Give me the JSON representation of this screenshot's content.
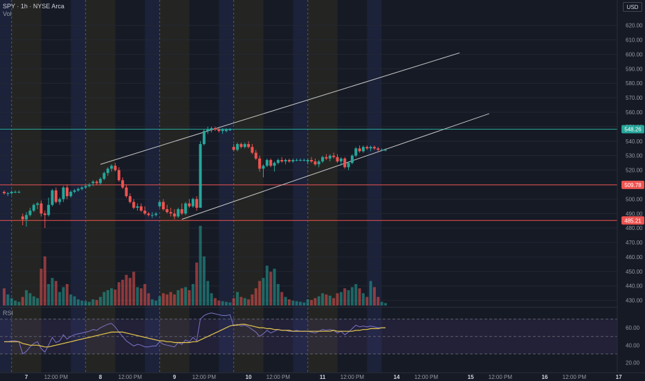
{
  "header": {
    "symbol_line": "SPY · 1h · NYSE Arca",
    "vol_label": "Vol",
    "rsi_label": "RSI",
    "currency": "USD"
  },
  "colors": {
    "up": "#26a69a",
    "down": "#ef5350",
    "background": "#161a25",
    "premarket": "#2a2a22",
    "afterhours": "#1e2540",
    "rsi_line": "#7e73c8",
    "rsi_ma": "#e6c74c",
    "channel": "#c8c8c8",
    "level_green": "#26a69a",
    "level_red": "#ef5350"
  },
  "chart_data": {
    "type": "candlestick",
    "symbol": "SPY",
    "interval": "1h",
    "exchange": "NYSE Arca",
    "currency": "USD",
    "price_axis": {
      "ticks": [
        620,
        610,
        600,
        590,
        580,
        570,
        560,
        550,
        540,
        530,
        520,
        510,
        500,
        490,
        480,
        470,
        460,
        450,
        440,
        430
      ],
      "tick_labels": [
        "620.00",
        "610.00",
        "600.00",
        "590.00",
        "580.00",
        "570.00",
        "560.00",
        "550.00",
        "540.00",
        "530.00",
        "520.00",
        "510.00",
        "500.00",
        "490.00",
        "480.00",
        "470.00",
        "460.00",
        "450.00",
        "440.00",
        "430.00"
      ],
      "range": [
        426,
        627
      ]
    },
    "rsi_axis": {
      "ticks": [
        60,
        40,
        20
      ],
      "tick_labels": [
        "60.00",
        "40.00",
        "20.00"
      ],
      "range": [
        10,
        80
      ],
      "band": [
        30,
        70
      ]
    },
    "time_axis": {
      "labels": [
        "7",
        "12:00 PM",
        "8",
        "12:00 PM",
        "9",
        "12:00 PM",
        "10",
        "12:00 PM",
        "11",
        "12:00 PM",
        "14",
        "12:00 PM",
        "15",
        "12:00 PM",
        "16",
        "12:00 PM",
        "17"
      ],
      "label_slots": [
        6,
        14,
        26,
        34,
        46,
        54,
        66,
        74,
        86,
        94,
        106,
        114,
        126,
        134,
        146,
        154,
        166
      ]
    },
    "sessions": [
      {
        "type": "afterhours",
        "slots": [
          -2,
          2
        ]
      },
      {
        "type": "premarket",
        "slots": [
          2,
          10
        ]
      },
      {
        "type": "afterhours",
        "slots": [
          18,
          22
        ]
      },
      {
        "type": "premarket",
        "slots": [
          22,
          30
        ]
      },
      {
        "type": "afterhours",
        "slots": [
          38,
          42
        ]
      },
      {
        "type": "premarket",
        "slots": [
          42,
          50
        ]
      },
      {
        "type": "afterhours",
        "slots": [
          58,
          62
        ]
      },
      {
        "type": "premarket",
        "slots": [
          62,
          70
        ]
      },
      {
        "type": "afterhours",
        "slots": [
          78,
          82
        ]
      },
      {
        "type": "premarket",
        "slots": [
          82,
          90
        ]
      },
      {
        "type": "afterhours",
        "slots": [
          98,
          102
        ]
      }
    ],
    "day_separators": [
      2,
      22,
      42,
      62,
      82
    ],
    "levels": [
      {
        "price": 548.26,
        "label": "548.26",
        "color": "green"
      },
      {
        "price": 509.78,
        "label": "509.78",
        "color": "red"
      },
      {
        "price": 485.21,
        "label": "485.21",
        "color": "red"
      }
    ],
    "channel_lines": [
      {
        "name": "upper",
        "from": [
          26,
          524
        ],
        "to": [
          123,
          601
        ]
      },
      {
        "name": "lower",
        "from": [
          48,
          486
        ],
        "to": [
          131,
          559
        ]
      }
    ],
    "candles": [
      {
        "o": 505,
        "h": 506,
        "l": 503,
        "c": 504,
        "v": 28
      },
      {
        "o": 504,
        "h": 505,
        "l": 502,
        "c": 504,
        "v": 18
      },
      {
        "o": 504,
        "h": 506,
        "l": 503,
        "c": 505,
        "v": 12
      },
      {
        "o": 505,
        "h": 506,
        "l": 504,
        "c": 505,
        "v": 8
      },
      {
        "o": 505,
        "h": 506,
        "l": 504,
        "c": 505,
        "v": 6
      },
      {
        "o": 488,
        "h": 490,
        "l": 482,
        "c": 486,
        "v": 14
      },
      {
        "o": 486,
        "h": 491,
        "l": 481,
        "c": 489,
        "v": 25
      },
      {
        "o": 489,
        "h": 494,
        "l": 488,
        "c": 492,
        "v": 20
      },
      {
        "o": 492,
        "h": 497,
        "l": 491,
        "c": 496,
        "v": 15
      },
      {
        "o": 496,
        "h": 498,
        "l": 493,
        "c": 497,
        "v": 12
      },
      {
        "o": 497,
        "h": 499,
        "l": 488,
        "c": 490,
        "v": 60
      },
      {
        "o": 490,
        "h": 492,
        "l": 480,
        "c": 489,
        "v": 80
      },
      {
        "o": 489,
        "h": 501,
        "l": 488,
        "c": 496,
        "v": 35
      },
      {
        "o": 496,
        "h": 507,
        "l": 495,
        "c": 506,
        "v": 45
      },
      {
        "o": 506,
        "h": 508,
        "l": 497,
        "c": 498,
        "v": 40
      },
      {
        "o": 498,
        "h": 501,
        "l": 496,
        "c": 500,
        "v": 22
      },
      {
        "o": 500,
        "h": 509,
        "l": 498,
        "c": 508,
        "v": 30
      },
      {
        "o": 508,
        "h": 510,
        "l": 500,
        "c": 502,
        "v": 35
      },
      {
        "o": 502,
        "h": 506,
        "l": 501,
        "c": 505,
        "v": 18
      },
      {
        "o": 505,
        "h": 507,
        "l": 504,
        "c": 506,
        "v": 15
      },
      {
        "o": 506,
        "h": 508,
        "l": 505,
        "c": 507,
        "v": 10
      },
      {
        "o": 507,
        "h": 509,
        "l": 506,
        "c": 508,
        "v": 8
      },
      {
        "o": 508,
        "h": 510,
        "l": 507,
        "c": 509,
        "v": 7
      },
      {
        "o": 509,
        "h": 511,
        "l": 508,
        "c": 510,
        "v": 6
      },
      {
        "o": 511,
        "h": 513,
        "l": 509,
        "c": 512,
        "v": 10
      },
      {
        "o": 512,
        "h": 513,
        "l": 510,
        "c": 511,
        "v": 9
      },
      {
        "o": 511,
        "h": 515,
        "l": 510,
        "c": 514,
        "v": 14
      },
      {
        "o": 514,
        "h": 519,
        "l": 513,
        "c": 518,
        "v": 22
      },
      {
        "o": 518,
        "h": 522,
        "l": 516,
        "c": 521,
        "v": 25
      },
      {
        "o": 521,
        "h": 524,
        "l": 519,
        "c": 523,
        "v": 28
      },
      {
        "o": 523,
        "h": 525,
        "l": 519,
        "c": 520,
        "v": 26
      },
      {
        "o": 520,
        "h": 522,
        "l": 512,
        "c": 513,
        "v": 38
      },
      {
        "o": 513,
        "h": 515,
        "l": 507,
        "c": 508,
        "v": 42
      },
      {
        "o": 508,
        "h": 510,
        "l": 501,
        "c": 502,
        "v": 50
      },
      {
        "o": 502,
        "h": 504,
        "l": 497,
        "c": 498,
        "v": 45
      },
      {
        "o": 498,
        "h": 500,
        "l": 493,
        "c": 494,
        "v": 55
      },
      {
        "o": 494,
        "h": 497,
        "l": 492,
        "c": 495,
        "v": 30
      },
      {
        "o": 495,
        "h": 497,
        "l": 491,
        "c": 492,
        "v": 28
      },
      {
        "o": 492,
        "h": 495,
        "l": 489,
        "c": 490,
        "v": 35
      },
      {
        "o": 490,
        "h": 491,
        "l": 488,
        "c": 489,
        "v": 20
      },
      {
        "o": 489,
        "h": 491,
        "l": 487,
        "c": 489,
        "v": 10
      },
      {
        "o": 489,
        "h": 491,
        "l": 488,
        "c": 490,
        "v": 8
      },
      {
        "o": 495,
        "h": 499,
        "l": 494,
        "c": 498,
        "v": 15
      },
      {
        "o": 498,
        "h": 500,
        "l": 492,
        "c": 493,
        "v": 20
      },
      {
        "o": 493,
        "h": 496,
        "l": 490,
        "c": 491,
        "v": 18
      },
      {
        "o": 491,
        "h": 494,
        "l": 488,
        "c": 490,
        "v": 22
      },
      {
        "o": 490,
        "h": 493,
        "l": 486,
        "c": 488,
        "v": 18
      },
      {
        "o": 488,
        "h": 494,
        "l": 487,
        "c": 493,
        "v": 25
      },
      {
        "o": 493,
        "h": 497,
        "l": 489,
        "c": 490,
        "v": 28
      },
      {
        "o": 490,
        "h": 498,
        "l": 489,
        "c": 497,
        "v": 30
      },
      {
        "o": 497,
        "h": 500,
        "l": 494,
        "c": 495,
        "v": 25
      },
      {
        "o": 495,
        "h": 501,
        "l": 494,
        "c": 500,
        "v": 35
      },
      {
        "o": 500,
        "h": 502,
        "l": 492,
        "c": 494,
        "v": 70
      },
      {
        "o": 494,
        "h": 540,
        "l": 494,
        "c": 538,
        "v": 130
      },
      {
        "o": 538,
        "h": 548,
        "l": 537,
        "c": 547,
        "v": 80
      },
      {
        "o": 547,
        "h": 550,
        "l": 545,
        "c": 548,
        "v": 40
      },
      {
        "o": 548,
        "h": 550,
        "l": 546,
        "c": 549,
        "v": 20
      },
      {
        "o": 549,
        "h": 550,
        "l": 547,
        "c": 548,
        "v": 12
      },
      {
        "o": 548,
        "h": 549,
        "l": 546,
        "c": 547,
        "v": 8
      },
      {
        "o": 547,
        "h": 549,
        "l": 545,
        "c": 548,
        "v": 7
      },
      {
        "o": 547,
        "h": 549,
        "l": 546,
        "c": 548,
        "v": 6
      },
      {
        "o": 548,
        "h": 549,
        "l": 547,
        "c": 548,
        "v": 5
      },
      {
        "o": 536,
        "h": 538,
        "l": 533,
        "c": 534,
        "v": 12
      },
      {
        "o": 534,
        "h": 539,
        "l": 533,
        "c": 538,
        "v": 22
      },
      {
        "o": 538,
        "h": 539,
        "l": 535,
        "c": 536,
        "v": 14
      },
      {
        "o": 536,
        "h": 539,
        "l": 535,
        "c": 538,
        "v": 12
      },
      {
        "o": 538,
        "h": 540,
        "l": 535,
        "c": 536,
        "v": 10
      },
      {
        "o": 536,
        "h": 538,
        "l": 531,
        "c": 532,
        "v": 18
      },
      {
        "o": 532,
        "h": 534,
        "l": 527,
        "c": 528,
        "v": 28
      },
      {
        "o": 528,
        "h": 530,
        "l": 519,
        "c": 521,
        "v": 40
      },
      {
        "o": 521,
        "h": 524,
        "l": 515,
        "c": 523,
        "v": 45
      },
      {
        "o": 523,
        "h": 528,
        "l": 522,
        "c": 527,
        "v": 65
      },
      {
        "o": 527,
        "h": 528,
        "l": 522,
        "c": 523,
        "v": 55
      },
      {
        "o": 523,
        "h": 526,
        "l": 519,
        "c": 525,
        "v": 60
      },
      {
        "o": 525,
        "h": 528,
        "l": 524,
        "c": 527,
        "v": 35
      },
      {
        "o": 527,
        "h": 529,
        "l": 525,
        "c": 526,
        "v": 22
      },
      {
        "o": 526,
        "h": 528,
        "l": 524,
        "c": 527,
        "v": 14
      },
      {
        "o": 527,
        "h": 528,
        "l": 525,
        "c": 526,
        "v": 10
      },
      {
        "o": 526,
        "h": 528,
        "l": 525,
        "c": 527,
        "v": 8
      },
      {
        "o": 527,
        "h": 528,
        "l": 526,
        "c": 527,
        "v": 7
      },
      {
        "o": 527,
        "h": 528,
        "l": 526,
        "c": 527,
        "v": 6
      },
      {
        "o": 527,
        "h": 528,
        "l": 526,
        "c": 527,
        "v": 5
      },
      {
        "o": 526,
        "h": 528,
        "l": 524,
        "c": 527,
        "v": 10
      },
      {
        "o": 527,
        "h": 529,
        "l": 525,
        "c": 526,
        "v": 9
      },
      {
        "o": 526,
        "h": 528,
        "l": 523,
        "c": 524,
        "v": 12
      },
      {
        "o": 524,
        "h": 527,
        "l": 522,
        "c": 526,
        "v": 15
      },
      {
        "o": 526,
        "h": 530,
        "l": 525,
        "c": 529,
        "v": 20
      },
      {
        "o": 529,
        "h": 531,
        "l": 527,
        "c": 528,
        "v": 18
      },
      {
        "o": 528,
        "h": 531,
        "l": 526,
        "c": 530,
        "v": 16
      },
      {
        "o": 530,
        "h": 532,
        "l": 528,
        "c": 529,
        "v": 12
      },
      {
        "o": 529,
        "h": 531,
        "l": 525,
        "c": 526,
        "v": 20
      },
      {
        "o": 526,
        "h": 529,
        "l": 523,
        "c": 528,
        "v": 22
      },
      {
        "o": 528,
        "h": 529,
        "l": 521,
        "c": 522,
        "v": 28
      },
      {
        "o": 522,
        "h": 526,
        "l": 520,
        "c": 525,
        "v": 25
      },
      {
        "o": 525,
        "h": 531,
        "l": 524,
        "c": 530,
        "v": 30
      },
      {
        "o": 530,
        "h": 536,
        "l": 529,
        "c": 535,
        "v": 35
      },
      {
        "o": 535,
        "h": 537,
        "l": 532,
        "c": 533,
        "v": 28
      },
      {
        "o": 533,
        "h": 537,
        "l": 532,
        "c": 536,
        "v": 20
      },
      {
        "o": 536,
        "h": 537,
        "l": 534,
        "c": 535,
        "v": 14
      },
      {
        "o": 535,
        "h": 537,
        "l": 533,
        "c": 536,
        "v": 40
      },
      {
        "o": 536,
        "h": 537,
        "l": 534,
        "c": 535,
        "v": 30
      },
      {
        "o": 535,
        "h": 536,
        "l": 533,
        "c": 534,
        "v": 14
      },
      {
        "o": 534,
        "h": 535,
        "l": 533,
        "c": 534,
        "v": 6
      },
      {
        "o": 534,
        "h": 535,
        "l": 533,
        "c": 534,
        "v": 4
      }
    ],
    "rsi": [
      44,
      44,
      45,
      45,
      44,
      30,
      33,
      38,
      42,
      44,
      36,
      32,
      40,
      49,
      43,
      45,
      52,
      47,
      50,
      52,
      53,
      54,
      55,
      56,
      58,
      57,
      60,
      62,
      64,
      65,
      61,
      55,
      50,
      45,
      42,
      39,
      41,
      40,
      38,
      38,
      39,
      39,
      44,
      41,
      40,
      39,
      38,
      43,
      41,
      46,
      44,
      49,
      45,
      70,
      74,
      76,
      77,
      76,
      75,
      74,
      74,
      75,
      62,
      64,
      62,
      63,
      61,
      58,
      55,
      50,
      53,
      57,
      54,
      56,
      58,
      57,
      57,
      56,
      56,
      57,
      56,
      56,
      56,
      55,
      54,
      56,
      58,
      57,
      58,
      57,
      54,
      56,
      52,
      55,
      59,
      63,
      61,
      62,
      61,
      62,
      61,
      60,
      60,
      60
    ],
    "rsi_ma": [
      44,
      44,
      44,
      44,
      44,
      42,
      41,
      40,
      40,
      40,
      39,
      38,
      38,
      39,
      40,
      41,
      42,
      43,
      44,
      45,
      46,
      47,
      48,
      49,
      50,
      51,
      52,
      53,
      54,
      55,
      55,
      55,
      55,
      54,
      53,
      52,
      51,
      50,
      49,
      48,
      47,
      46,
      45,
      45,
      44,
      44,
      43,
      43,
      43,
      43,
      43,
      44,
      44,
      46,
      48,
      50,
      52,
      54,
      56,
      58,
      60,
      62,
      63,
      63,
      64,
      64,
      63,
      62,
      61,
      60,
      60,
      59,
      59,
      58,
      58,
      57,
      57,
      57,
      56,
      56,
      56,
      56,
      56,
      56,
      56,
      56,
      56,
      56,
      56,
      57,
      56,
      56,
      56,
      56,
      56,
      57,
      57,
      58,
      58,
      59,
      59,
      59,
      60,
      60
    ]
  }
}
